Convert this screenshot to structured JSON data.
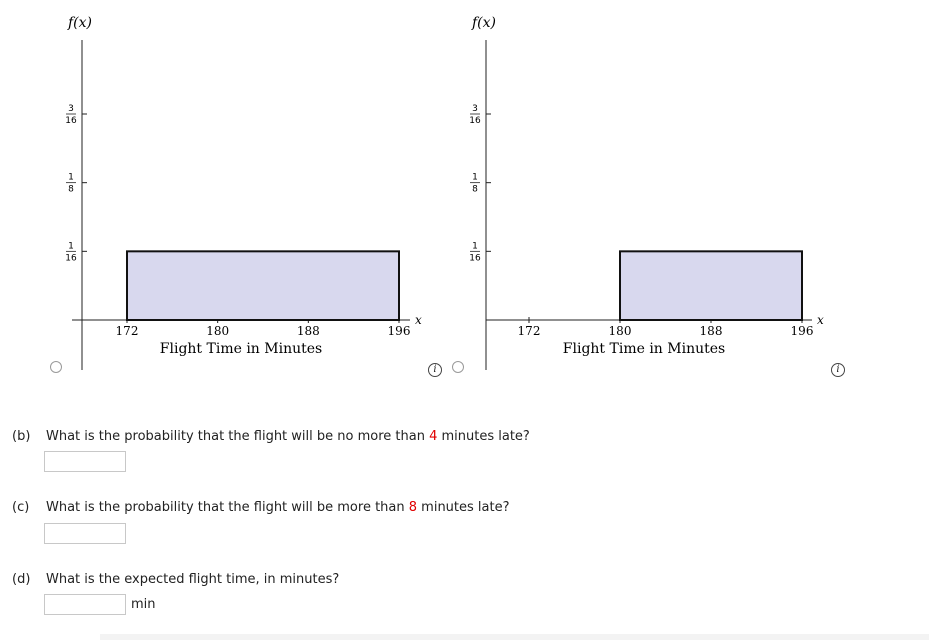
{
  "charts": [
    {
      "y_label": "f(x)",
      "x_label": "x",
      "axis_title": "Flight Time in Minutes",
      "y_ticks": [
        {
          "num": "3",
          "den": "16",
          "value": 0.1875
        },
        {
          "num": "1",
          "den": "8",
          "value": 0.125
        },
        {
          "num": "1",
          "den": "16",
          "value": 0.0625
        }
      ],
      "x_ticks": [
        "172",
        "180",
        "188",
        "196"
      ],
      "info_label": "i"
    },
    {
      "y_label": "f(x)",
      "x_label": "x",
      "axis_title": "Flight Time in Minutes",
      "y_ticks": [
        {
          "num": "3",
          "den": "16",
          "value": 0.1875
        },
        {
          "num": "1",
          "den": "8",
          "value": 0.125
        },
        {
          "num": "1",
          "den": "16",
          "value": 0.0625
        }
      ],
      "x_ticks": [
        "172",
        "180",
        "188",
        "196"
      ],
      "info_label": "i"
    }
  ],
  "chart_data": [
    {
      "type": "area",
      "xlabel": "Flight Time in Minutes",
      "ylabel": "f(x)",
      "xlim": [
        168,
        198
      ],
      "ylim": [
        0,
        0.21
      ],
      "x": [
        172,
        196
      ],
      "y": [
        0.0625,
        0.0625
      ],
      "fill_color": "#d8d8ee",
      "grid": false
    },
    {
      "type": "area",
      "xlabel": "Flight Time in Minutes",
      "ylabel": "f(x)",
      "xlim": [
        166,
        198
      ],
      "ylim": [
        0,
        0.21
      ],
      "x": [
        180,
        196
      ],
      "y": [
        0.0625,
        0.0625
      ],
      "fill_color": "#d8d8ee",
      "grid": false
    }
  ],
  "questions": {
    "b": {
      "part": "(b)",
      "before": "What is the probability that the flight will be no more than ",
      "value": "4",
      "after": " minutes late?",
      "answer": ""
    },
    "c": {
      "part": "(c)",
      "before": "What is the probability that the flight will be more than ",
      "value": "8",
      "after": " minutes late?",
      "answer": ""
    },
    "d": {
      "part": "(d)",
      "text": "What is the expected flight time, in minutes?",
      "answer": "",
      "unit": "min"
    }
  },
  "colors": {
    "highlight": "#e00000",
    "fill": "#d8d8ee",
    "axis": "#222222"
  }
}
